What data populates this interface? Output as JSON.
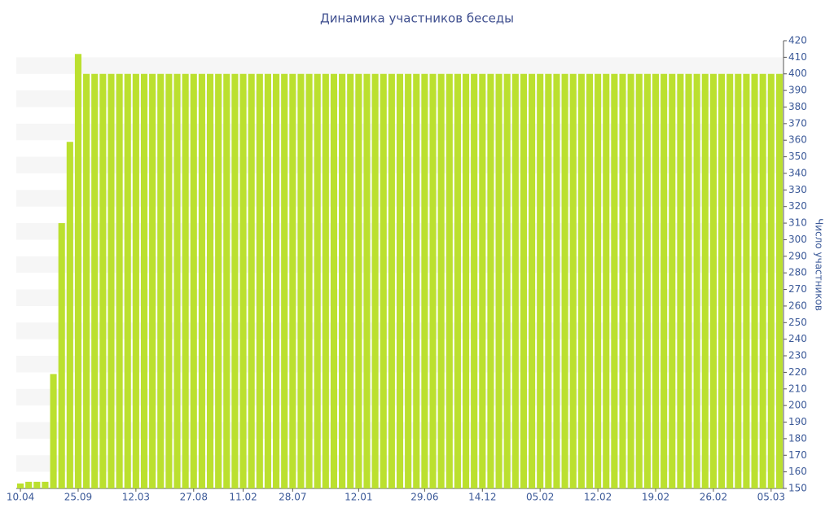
{
  "chart_data": {
    "type": "bar",
    "title": "Динамика участников беседы",
    "y_label": "Число участников",
    "color": "#bbe02f",
    "grid": true,
    "categories": [
      "10.04",
      null,
      null,
      null,
      null,
      null,
      null,
      "25.09",
      null,
      null,
      null,
      null,
      null,
      null,
      "12.03",
      null,
      null,
      null,
      null,
      null,
      null,
      "27.08",
      null,
      null,
      null,
      null,
      null,
      "11.02",
      null,
      null,
      null,
      null,
      null,
      "28.07",
      null,
      null,
      null,
      null,
      null,
      null,
      null,
      "12.01",
      null,
      null,
      null,
      null,
      null,
      null,
      null,
      "29.06",
      null,
      null,
      null,
      null,
      null,
      null,
      "14.12",
      null,
      null,
      null,
      null,
      null,
      null,
      "05.02",
      null,
      null,
      null,
      null,
      null,
      null,
      "12.02",
      null,
      null,
      null,
      null,
      null,
      null,
      "19.02",
      null,
      null,
      null,
      null,
      null,
      null,
      "26.02",
      null,
      null,
      null,
      null,
      null,
      null,
      "05.03",
      null
    ],
    "values": [
      153,
      154,
      154,
      154,
      219,
      310,
      359,
      412,
      400,
      400,
      400,
      400,
      400,
      400,
      400,
      400,
      400,
      400,
      400,
      400,
      400,
      400,
      400,
      400,
      400,
      400,
      400,
      400,
      400,
      400,
      400,
      400,
      400,
      400,
      400,
      400,
      400,
      400,
      400,
      400,
      400,
      400,
      400,
      400,
      400,
      400,
      400,
      400,
      400,
      400,
      400,
      400,
      400,
      400,
      400,
      400,
      400,
      400,
      400,
      400,
      400,
      400,
      400,
      400,
      400,
      400,
      400,
      400,
      400,
      400,
      400,
      400,
      400,
      400,
      400,
      400,
      400,
      400,
      400,
      400,
      400,
      400,
      400,
      400,
      400,
      400,
      400,
      400,
      400,
      400,
      400,
      400,
      400
    ],
    "ylim": [
      150,
      420
    ],
    "yticks": [
      150,
      160,
      170,
      180,
      190,
      200,
      210,
      220,
      230,
      240,
      250,
      260,
      270,
      280,
      290,
      300,
      310,
      320,
      330,
      340,
      350,
      360,
      370,
      380,
      390,
      400,
      410,
      420
    ]
  }
}
